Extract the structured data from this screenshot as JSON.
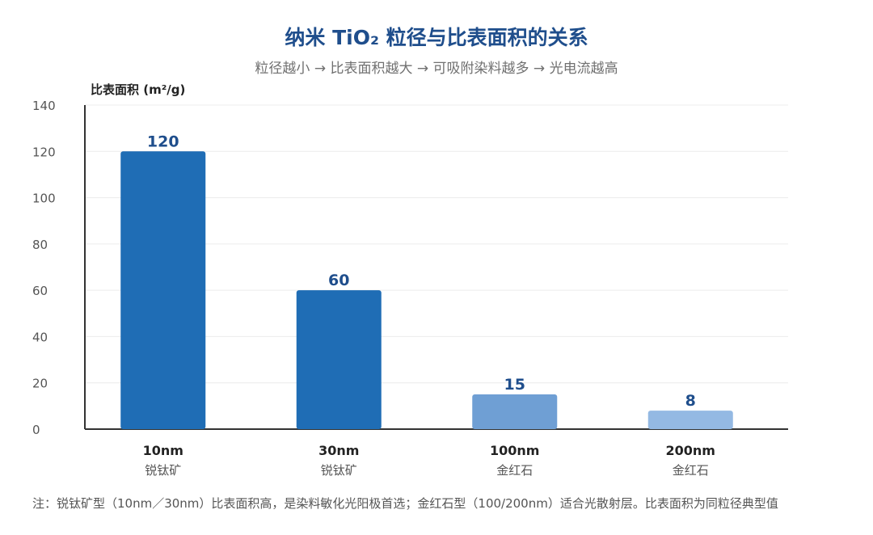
{
  "chart_data": {
    "type": "bar",
    "title": "纳米 TiO₂ 粒径与比表面积的关系",
    "subtitle": "粒径越小 → 比表面积越大 → 可吸附染料越多 → 光电流越高",
    "ylabel": "比表面积 (m²/g)",
    "ylim": [
      0,
      140
    ],
    "yticks": [
      0,
      20,
      40,
      60,
      80,
      100,
      120,
      140
    ],
    "grid": true,
    "categories": [
      "10nm",
      "30nm",
      "100nm",
      "200nm"
    ],
    "category_sublabels": [
      "锐钛矿",
      "锐钛矿",
      "金红石",
      "金红石"
    ],
    "values": [
      120,
      60,
      15,
      8
    ],
    "data_labels": [
      "120",
      "60",
      "15",
      "8"
    ],
    "bar_colors": [
      "#1f6db5",
      "#1f6db5",
      "#6f9fd4",
      "#94b9e3"
    ]
  },
  "footnote": "注：锐钛矿型（10nm／30nm）比表面积高，是染料敏化光阳极首选；金红石型（100/200nm）适合光散射层。比表面积为同粒径典型值"
}
